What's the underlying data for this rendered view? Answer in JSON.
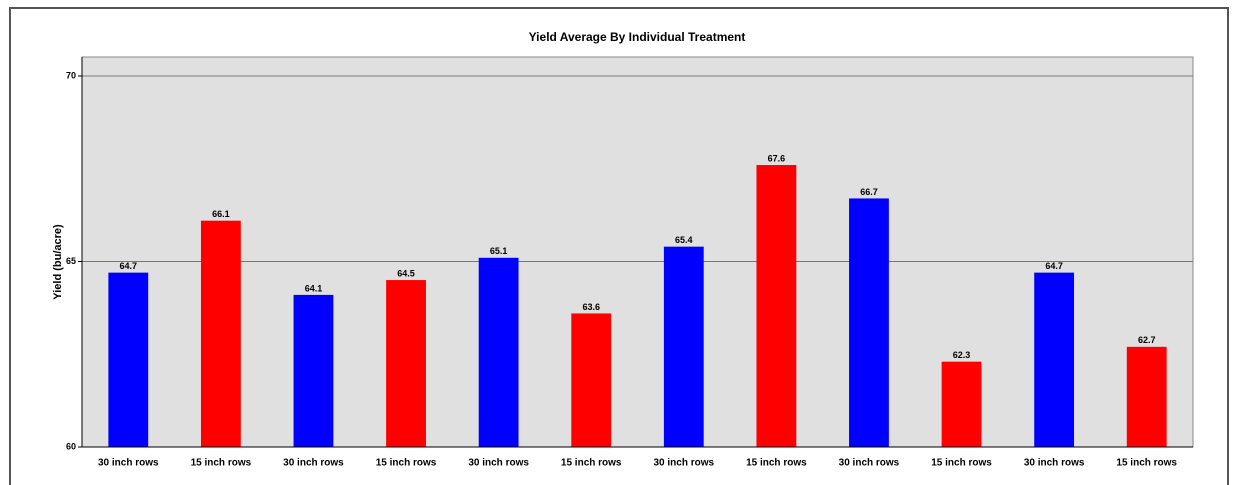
{
  "chart_data": {
    "type": "bar",
    "title": "Yield Average By Individual Treatment",
    "y_label": "Yield (bu/acre)",
    "categories": [
      "30 inch rows",
      "15 inch rows",
      "30 inch rows",
      "15 inch rows",
      "30 inch rows",
      "15 inch rows",
      "30 inch rows",
      "15 inch rows",
      "30 inch rows",
      "15 inch rows",
      "30 inch rows",
      "15 inch rows"
    ],
    "values": [
      64.7,
      66.1,
      64.1,
      64.5,
      65.1,
      63.6,
      65.4,
      67.6,
      66.7,
      62.3,
      64.7,
      62.7
    ],
    "colors": [
      "#0000ff",
      "#ff0000",
      "#0000ff",
      "#ff0000",
      "#0000ff",
      "#ff0000",
      "#0000ff",
      "#ff0000",
      "#0000ff",
      "#ff0000",
      "#0000ff",
      "#ff0000"
    ],
    "ylim": [
      60,
      70
    ],
    "yticks": [
      60,
      65,
      70
    ],
    "grid": true
  }
}
